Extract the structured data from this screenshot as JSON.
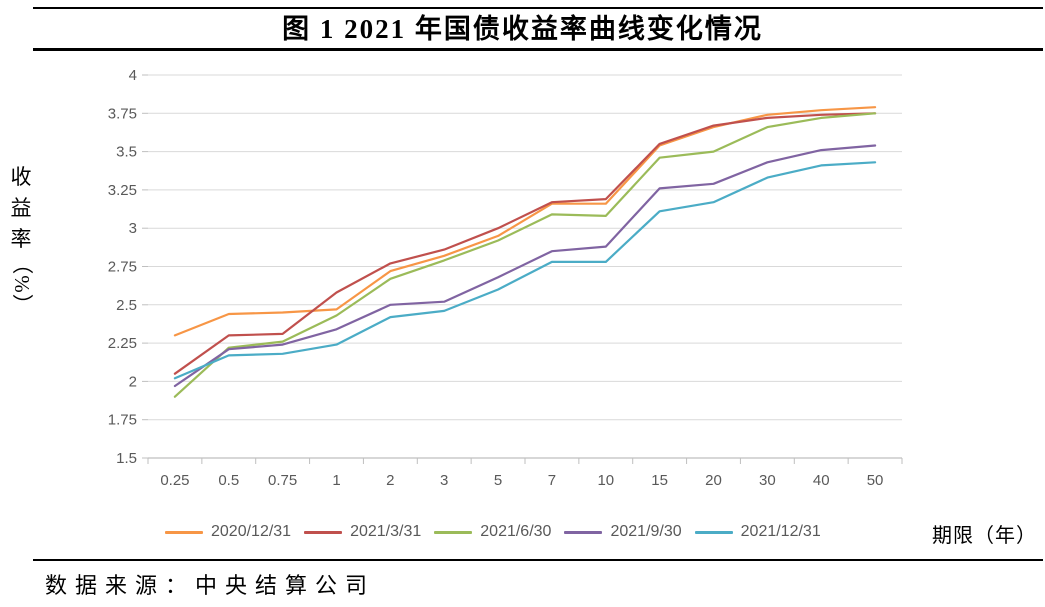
{
  "figure": {
    "title": "图 1 2021 年国债收益率曲线变化情况",
    "source_label": "数据来源：中央结算公司"
  },
  "chart_data": {
    "type": "line",
    "title": "图 1 2021 年国债收益率曲线变化情况",
    "x_axis_label": "期限（年）",
    "y_axis_label": "收益率（%）",
    "categories": [
      "0.25",
      "0.5",
      "0.75",
      "1",
      "2",
      "3",
      "5",
      "7",
      "10",
      "15",
      "20",
      "30",
      "40",
      "50"
    ],
    "y_ticks": [
      "4",
      "3.75",
      "3.5",
      "3.25",
      "3",
      "2.75",
      "2.5",
      "2.25",
      "2",
      "1.75",
      "1.5"
    ],
    "ylim": [
      1.5,
      4.0
    ],
    "grid": true,
    "legend_position": "bottom",
    "series": [
      {
        "name": "2020/12/31",
        "color": "#F79646",
        "values": [
          2.3,
          2.44,
          2.45,
          2.47,
          2.72,
          2.82,
          2.95,
          3.16,
          3.16,
          3.54,
          3.66,
          3.74,
          3.77,
          3.79
        ]
      },
      {
        "name": "2021/3/31",
        "color": "#C0504D",
        "values": [
          2.05,
          2.3,
          2.31,
          2.58,
          2.77,
          2.86,
          3.0,
          3.17,
          3.19,
          3.55,
          3.67,
          3.72,
          3.74,
          3.75
        ]
      },
      {
        "name": "2021/6/30",
        "color": "#9BBB59",
        "values": [
          1.9,
          2.22,
          2.26,
          2.43,
          2.67,
          2.79,
          2.92,
          3.09,
          3.08,
          3.46,
          3.5,
          3.66,
          3.72,
          3.75
        ]
      },
      {
        "name": "2021/9/30",
        "color": "#8064A2",
        "values": [
          1.97,
          2.21,
          2.24,
          2.34,
          2.5,
          2.52,
          2.68,
          2.85,
          2.88,
          3.26,
          3.29,
          3.43,
          3.51,
          3.54
        ]
      },
      {
        "name": "2021/12/31",
        "color": "#4BACC6",
        "values": [
          2.02,
          2.17,
          2.18,
          2.24,
          2.42,
          2.46,
          2.6,
          2.78,
          2.78,
          3.11,
          3.17,
          3.33,
          3.41,
          3.43
        ]
      }
    ]
  },
  "colors": {
    "gridline": "#D9D9D9",
    "axis": "#BFBFBF",
    "tick_text": "#595959",
    "rule": "#000000"
  }
}
